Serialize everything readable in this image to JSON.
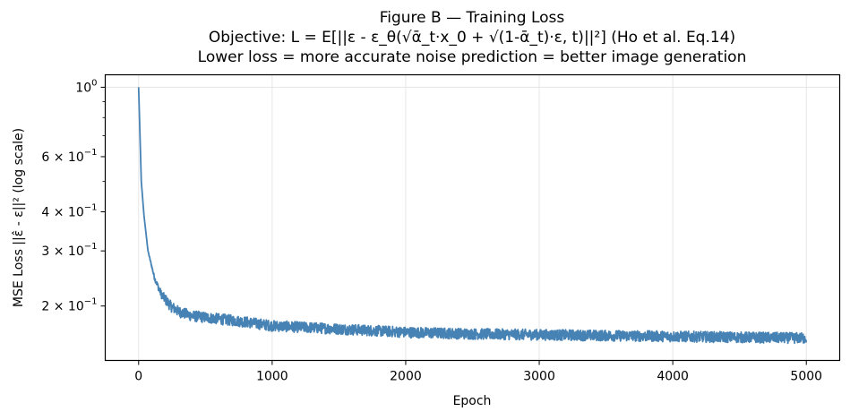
{
  "figure": {
    "title_lines": [
      "Figure B — Training Loss",
      "Objective: L = E[||ε - ε_θ(√ᾱ_t·x_0 + √(1-ᾱ_t)·ε, t)||²]   (Ho et al. Eq.14)",
      "Lower loss = more accurate noise prediction = better image generation"
    ]
  },
  "chart_data": {
    "type": "line",
    "title": "Figure B — Training Loss",
    "subtitle": [
      "Objective: L = E[||ε - ε_θ(√ᾱ_t·x_0 + √(1-ᾱ_t)·ε, t)||²]   (Ho et al. Eq.14)",
      "Lower loss = more accurate noise prediction = better image generation"
    ],
    "xlabel": "Epoch",
    "ylabel": "MSE Loss  ||ε̂ - ε||²  (log scale)",
    "yscale": "log",
    "xlim": [
      -250,
      5250
    ],
    "ylim": [
      0.134,
      1.096
    ],
    "x_ticks": [
      0,
      1000,
      2000,
      3000,
      4000,
      5000
    ],
    "x_tick_labels": [
      "0",
      "1000",
      "2000",
      "3000",
      "4000",
      "5000"
    ],
    "y_ticks": [
      1.0,
      0.6,
      0.4,
      0.3,
      0.2
    ],
    "y_tick_labels": [
      {
        "mant": "",
        "base": "10",
        "exp": "0"
      },
      {
        "mant": "6 × ",
        "base": "10",
        "exp": "−1"
      },
      {
        "mant": "4 × ",
        "base": "10",
        "exp": "−1"
      },
      {
        "mant": "3 × ",
        "base": "10",
        "exp": "−1"
      },
      {
        "mant": "2 × ",
        "base": "10",
        "exp": "−1"
      }
    ],
    "y_minor_ticks": [
      0.9,
      0.8,
      0.7,
      0.5
    ],
    "grid": true,
    "legend": null,
    "series": [
      {
        "name": "training loss",
        "color": "#4682B4",
        "noise_band": 0.04,
        "x": [
          0,
          20,
          40,
          70,
          120,
          170,
          240,
          300,
          400,
          600,
          800,
          1000,
          1500,
          2000,
          2500,
          3000,
          3500,
          4000,
          4500,
          5000
        ],
        "y": [
          1.0,
          0.5,
          0.39,
          0.3,
          0.245,
          0.218,
          0.2,
          0.192,
          0.186,
          0.182,
          0.178,
          0.173,
          0.169,
          0.165,
          0.163,
          0.162,
          0.161,
          0.16,
          0.159,
          0.158
        ]
      }
    ]
  }
}
